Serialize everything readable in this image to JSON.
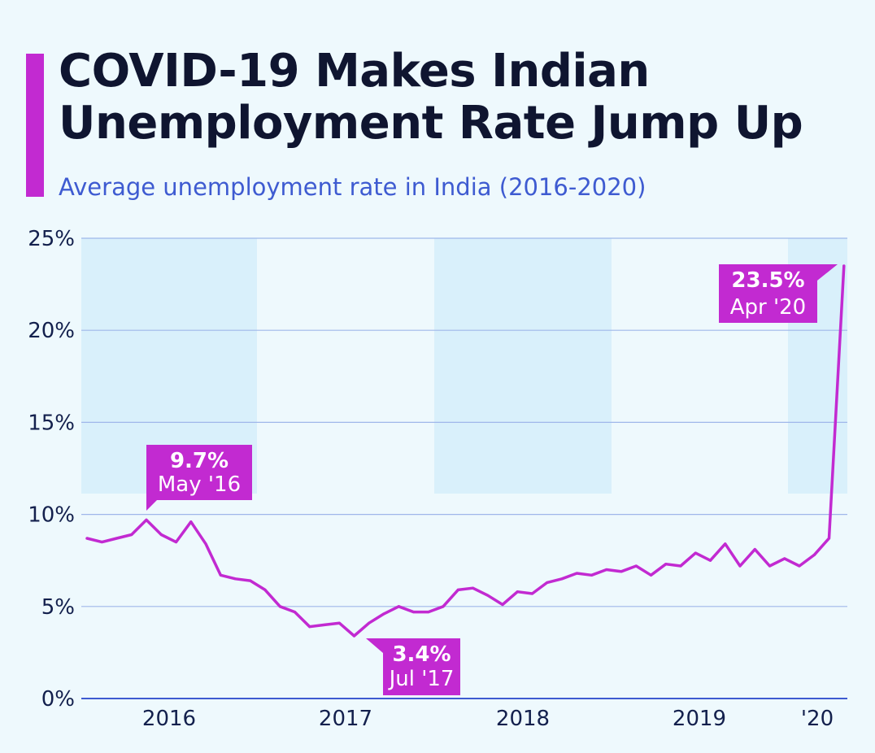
{
  "header": {
    "title": "COVID-19 Makes Indian Unemployment Rate Jump Up",
    "subtitle": "Average unemployment rate in India (2016-2020)"
  },
  "colors": {
    "accent": "#c22ad1",
    "line": "#c22ad1",
    "band": "#d9f0fb",
    "grid": "#9fb7ea",
    "axis": "#3e5bd1",
    "text": "#13204d"
  },
  "chart_data": {
    "type": "line",
    "title": "COVID-19 Makes Indian Unemployment Rate Jump Up",
    "subtitle": "Average unemployment rate in India (2016-2020)",
    "xlabel": "",
    "ylabel": "",
    "ylim": [
      0,
      25
    ],
    "y_ticks": [
      "0%",
      "5%",
      "10%",
      "15%",
      "20%",
      "25%"
    ],
    "x_ticks": [
      "2016",
      "2017",
      "2018",
      "2019",
      "'20"
    ],
    "grid": true,
    "series": [
      {
        "values": [
          8.7,
          8.5,
          8.7,
          8.9,
          9.7,
          8.9,
          8.5,
          9.6,
          8.4,
          6.7,
          6.5,
          6.4,
          5.9,
          5.0,
          4.7,
          3.9,
          4.0,
          4.1,
          3.4,
          4.1,
          4.6,
          5.0,
          4.7,
          4.7,
          5.0,
          5.9,
          6.0,
          5.6,
          5.1,
          5.8,
          5.7,
          6.3,
          6.5,
          6.8,
          6.7,
          7.0,
          6.9,
          7.2,
          6.7,
          7.3,
          7.2,
          7.9,
          7.5,
          8.4,
          7.2,
          8.1,
          7.2,
          7.6,
          7.2,
          7.8,
          8.7,
          23.5
        ]
      }
    ],
    "annotations": [
      {
        "value": "9.7%",
        "date": "May '16"
      },
      {
        "value": "3.4%",
        "date": "Jul '17"
      },
      {
        "value": "23.5%",
        "date": "Apr '20"
      }
    ]
  }
}
